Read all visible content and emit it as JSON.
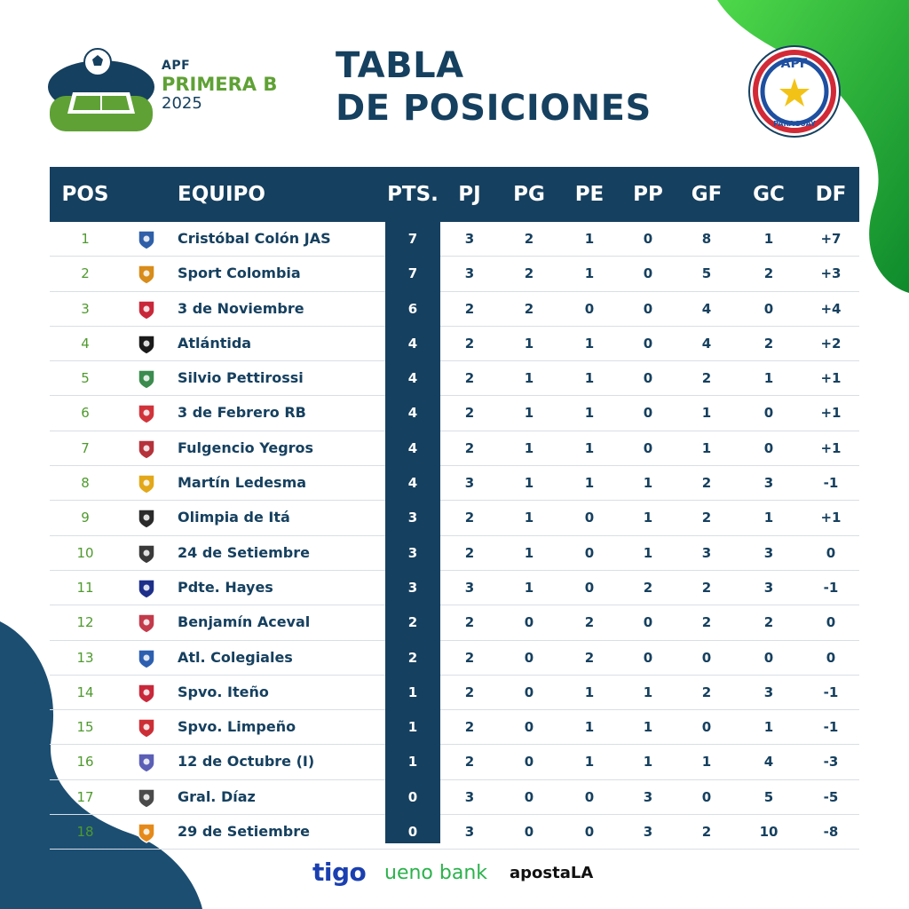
{
  "header": {
    "league_apf": "APF",
    "league_name": "PRIMERA B",
    "league_year": "2025",
    "title_line1": "TABLA",
    "title_line2": "DE POSICIONES",
    "badge_top": "APF",
    "badge_bottom": "PARAGUAY"
  },
  "columns": [
    "POS",
    "EQUIPO",
    "PTS.",
    "PJ",
    "PG",
    "PE",
    "PP",
    "GF",
    "GC",
    "DF"
  ],
  "rows": [
    {
      "pos": "1",
      "team": "Cristóbal Colón JAS",
      "pts": "7",
      "pj": "3",
      "pg": "2",
      "pe": "1",
      "pp": "0",
      "gf": "8",
      "gc": "1",
      "df": "+7"
    },
    {
      "pos": "2",
      "team": "Sport Colombia",
      "pts": "7",
      "pj": "3",
      "pg": "2",
      "pe": "1",
      "pp": "0",
      "gf": "5",
      "gc": "2",
      "df": "+3"
    },
    {
      "pos": "3",
      "team": "3 de Noviembre",
      "pts": "6",
      "pj": "2",
      "pg": "2",
      "pe": "0",
      "pp": "0",
      "gf": "4",
      "gc": "0",
      "df": "+4"
    },
    {
      "pos": "4",
      "team": "Atlántida",
      "pts": "4",
      "pj": "2",
      "pg": "1",
      "pe": "1",
      "pp": "0",
      "gf": "4",
      "gc": "2",
      "df": "+2"
    },
    {
      "pos": "5",
      "team": "Silvio Pettirossi",
      "pts": "4",
      "pj": "2",
      "pg": "1",
      "pe": "1",
      "pp": "0",
      "gf": "2",
      "gc": "1",
      "df": "+1"
    },
    {
      "pos": "6",
      "team": "3 de Febrero RB",
      "pts": "4",
      "pj": "2",
      "pg": "1",
      "pe": "1",
      "pp": "0",
      "gf": "1",
      "gc": "0",
      "df": "+1"
    },
    {
      "pos": "7",
      "team": "Fulgencio Yegros",
      "pts": "4",
      "pj": "2",
      "pg": "1",
      "pe": "1",
      "pp": "0",
      "gf": "1",
      "gc": "0",
      "df": "+1"
    },
    {
      "pos": "8",
      "team": "Martín Ledesma",
      "pts": "4",
      "pj": "3",
      "pg": "1",
      "pe": "1",
      "pp": "1",
      "gf": "2",
      "gc": "3",
      "df": "-1"
    },
    {
      "pos": "9",
      "team": "Olimpia de Itá",
      "pts": "3",
      "pj": "2",
      "pg": "1",
      "pe": "0",
      "pp": "1",
      "gf": "2",
      "gc": "1",
      "df": "+1"
    },
    {
      "pos": "10",
      "team": "24 de Setiembre",
      "pts": "3",
      "pj": "2",
      "pg": "1",
      "pe": "0",
      "pp": "1",
      "gf": "3",
      "gc": "3",
      "df": "0"
    },
    {
      "pos": "11",
      "team": "Pdte. Hayes",
      "pts": "3",
      "pj": "3",
      "pg": "1",
      "pe": "0",
      "pp": "2",
      "gf": "2",
      "gc": "3",
      "df": "-1"
    },
    {
      "pos": "12",
      "team": "Benjamín Aceval",
      "pts": "2",
      "pj": "2",
      "pg": "0",
      "pe": "2",
      "pp": "0",
      "gf": "2",
      "gc": "2",
      "df": "0"
    },
    {
      "pos": "13",
      "team": "Atl. Colegiales",
      "pts": "2",
      "pj": "2",
      "pg": "0",
      "pe": "2",
      "pp": "0",
      "gf": "0",
      "gc": "0",
      "df": "0"
    },
    {
      "pos": "14",
      "team": "Spvo. Iteño",
      "pts": "1",
      "pj": "2",
      "pg": "0",
      "pe": "1",
      "pp": "1",
      "gf": "2",
      "gc": "3",
      "df": "-1"
    },
    {
      "pos": "15",
      "team": "Spvo. Limpeño",
      "pts": "1",
      "pj": "2",
      "pg": "0",
      "pe": "1",
      "pp": "1",
      "gf": "0",
      "gc": "1",
      "df": "-1"
    },
    {
      "pos": "16",
      "team": "12 de Octubre (I)",
      "pts": "1",
      "pj": "2",
      "pg": "0",
      "pe": "1",
      "pp": "1",
      "gf": "1",
      "gc": "4",
      "df": "-3"
    },
    {
      "pos": "17",
      "team": "Gral. Díaz",
      "pts": "0",
      "pj": "3",
      "pg": "0",
      "pe": "0",
      "pp": "3",
      "gf": "0",
      "gc": "5",
      "df": "-5"
    },
    {
      "pos": "18",
      "team": "29 de Setiembre",
      "pts": "0",
      "pj": "3",
      "pg": "0",
      "pe": "0",
      "pp": "3",
      "gf": "2",
      "gc": "10",
      "df": "-8"
    }
  ],
  "crests": [
    "#2e5fa8",
    "#d88c1a",
    "#c8283a",
    "#1a1a1a",
    "#3b8c4e",
    "#d0343a",
    "#b5323a",
    "#e2a81a",
    "#2a2a2a",
    "#3a3a3a",
    "#1d2f8a",
    "#c33a4a",
    "#2d5fb0",
    "#c8283a",
    "#cc2e36",
    "#5b5fb6",
    "#4a4a4a",
    "#e58a1a"
  ],
  "sponsors": {
    "tigo": "tigo",
    "ueno": "ueno bank",
    "aposta": "apostaLA"
  },
  "colors": {
    "navy": "#16405f",
    "green": "#5fa135",
    "light_green": "#3fc040",
    "row_border": "#d9dfe4"
  }
}
